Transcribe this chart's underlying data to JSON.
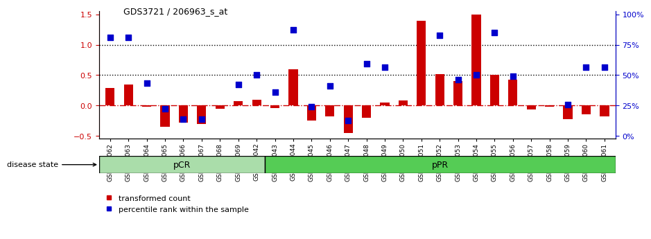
{
  "title": "GDS3721 / 206963_s_at",
  "samples": [
    "GSM559062",
    "GSM559063",
    "GSM559064",
    "GSM559065",
    "GSM559066",
    "GSM559067",
    "GSM559068",
    "GSM559069",
    "GSM559042",
    "GSM559043",
    "GSM559044",
    "GSM559045",
    "GSM559046",
    "GSM559047",
    "GSM559048",
    "GSM559049",
    "GSM559050",
    "GSM559051",
    "GSM559052",
    "GSM559053",
    "GSM559054",
    "GSM559055",
    "GSM559056",
    "GSM559057",
    "GSM559058",
    "GSM559059",
    "GSM559060",
    "GSM559061"
  ],
  "transformed_count": [
    0.29,
    0.35,
    -0.02,
    -0.35,
    -0.28,
    -0.3,
    -0.05,
    0.07,
    0.1,
    -0.04,
    0.6,
    -0.25,
    -0.18,
    -0.45,
    -0.2,
    0.05,
    0.08,
    1.4,
    0.52,
    0.4,
    1.5,
    0.5,
    0.43,
    -0.07,
    -0.02,
    -0.22,
    -0.15,
    -0.18
  ],
  "percentile_rank": [
    1.12,
    1.12,
    0.37,
    -0.05,
    -0.22,
    -0.22,
    null,
    0.35,
    0.5,
    0.22,
    1.25,
    -0.02,
    0.32,
    -0.25,
    0.69,
    0.63,
    null,
    null,
    1.15,
    0.42,
    0.5,
    1.2,
    0.48,
    null,
    null,
    0.02,
    0.63,
    0.63
  ],
  "pCR_count": 9,
  "pPR_count": 19,
  "bar_color": "#cc0000",
  "dot_color": "#0000cc",
  "zero_line_color": "#cc0000",
  "hline_color": "#000000",
  "pcr_fill": "#aaddaa",
  "ppr_fill": "#55cc55",
  "ylim": [
    -0.55,
    1.55
  ],
  "yticks_left": [
    -0.5,
    0.0,
    0.5,
    1.0,
    1.5
  ],
  "yticks_right": [
    0,
    25,
    50,
    75,
    100
  ],
  "dotted_lines": [
    0.5,
    1.0
  ]
}
